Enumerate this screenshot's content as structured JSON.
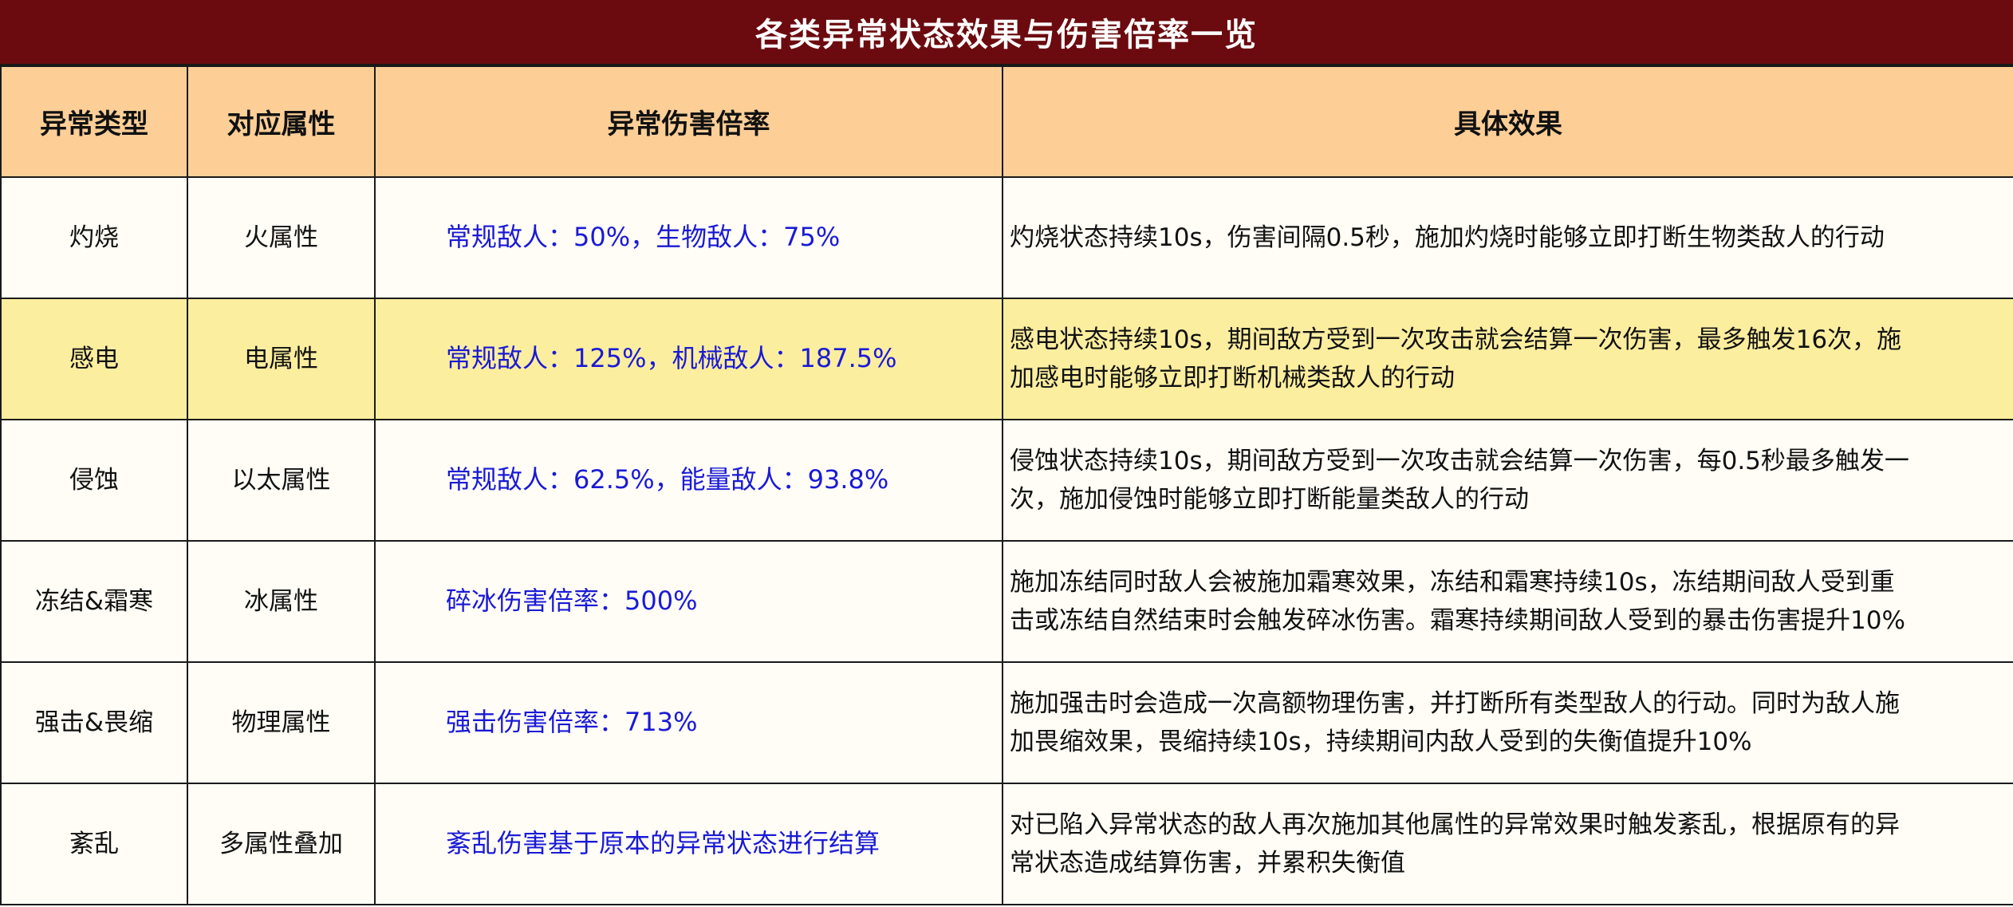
{
  "title": "各类异常状态效果与伤害倍率一览",
  "headers": [
    "异常类型",
    "对应属性",
    "异常伤害倍率",
    "具体效果"
  ],
  "rows": [
    {
      "type": "灼烧",
      "attribute": "火属性",
      "rate": "常规敌人：50%，生物敌人：75%",
      "effect_lines": [
        "灼烧状态持续10s，伤害间隔0.5秒，施加灼烧时能够立即打断生物类敌人的行动"
      ]
    },
    {
      "type": "感电",
      "attribute": "电属性",
      "rate": "常规敌人：125%，机械敌人：187.5%",
      "effect_lines": [
        "感电状态持续10s，期间敌方受到一次攻击就会结算一次伤害，最多触发16次，施",
        "加感电时能够立即打断机械类敌人的行动"
      ]
    },
    {
      "type": "侵蚀",
      "attribute": "以太属性",
      "rate": "常规敌人：62.5%，能量敌人：93.8%",
      "effect_lines": [
        "侵蚀状态持续10s，期间敌方受到一次攻击就会结算一次伤害，每0.5秒最多触发一",
        "次，施加侵蚀时能够立即打断能量类敌人的行动"
      ]
    },
    {
      "type": "冻结&霜寒",
      "attribute": "冰属性",
      "rate": "碎冰伤害倍率：500%",
      "effect_lines": [
        "施加冻结同时敌人会被施加霜寒效果，冻结和霜寒持续10s，冻结期间敌人受到重",
        "击或冻结自然结束时会触发碎冰伤害。霜寒持续期间敌人受到的暴击伤害提升10%"
      ]
    },
    {
      "type": "强击&畏缩",
      "attribute": "物理属性",
      "rate": "强击伤害倍率：713%",
      "effect_lines": [
        "施加强击时会造成一次高额物理伤害，并打断所有类型敌人的行动。同时为敌人施",
        "加畏缩效果，畏缩持续10s，持续期间内敌人受到的失衡值提升10%"
      ]
    },
    {
      "type": "紊乱",
      "attribute": "多属性叠加",
      "rate": "紊乱伤害基于原本的异常状态进行结算",
      "effect_lines": [
        "对已陷入异常状态的敌人再次施加其他属性的异常效果时触发紊乱，根据原有的异",
        "常状态造成结算伤害，并累积失衡值"
      ]
    }
  ],
  "colors": {
    "title_bg": "#6b0b0f",
    "header_bg": "#fdcf97",
    "row_bg": "#fffdf6",
    "highlight_row_bg": "#fcee9f",
    "rate_text": "#1a1ad6"
  }
}
